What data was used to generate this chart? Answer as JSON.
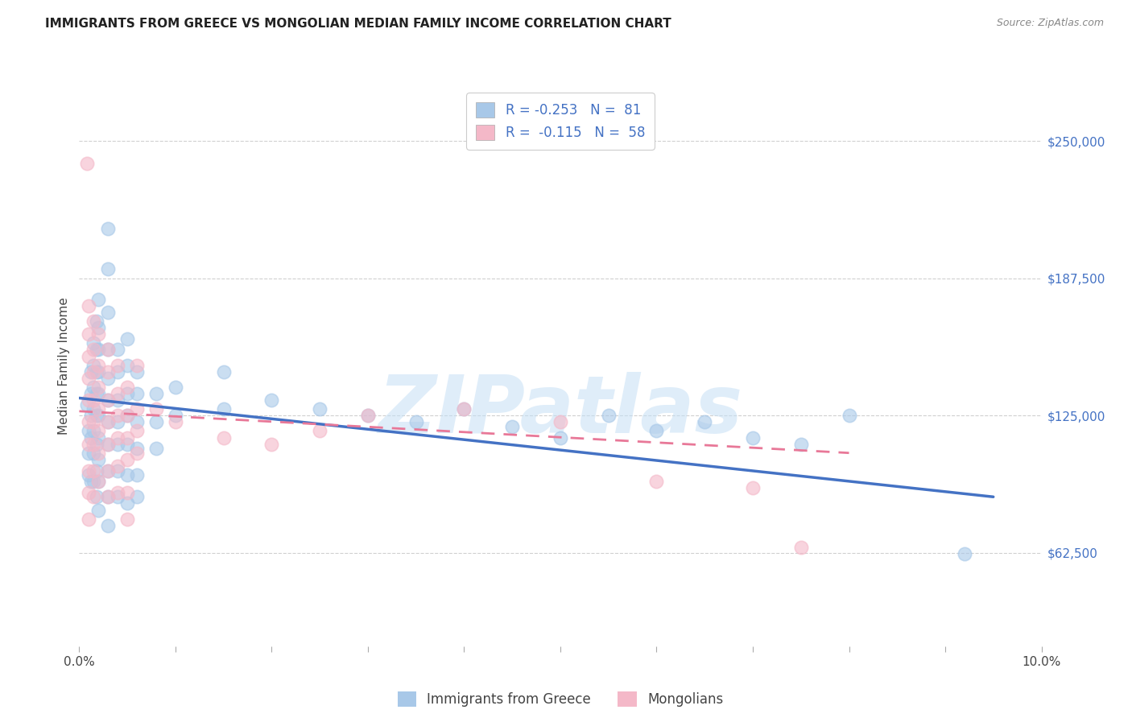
{
  "title": "IMMIGRANTS FROM GREECE VS MONGOLIAN MEDIAN FAMILY INCOME CORRELATION CHART",
  "source": "Source: ZipAtlas.com",
  "ylabel": "Median Family Income",
  "y_ticks": [
    62500,
    125000,
    187500,
    250000
  ],
  "y_tick_labels": [
    "$62,500",
    "$125,000",
    "$187,500",
    "$250,000"
  ],
  "x_range": [
    0.0,
    0.1
  ],
  "y_range": [
    20000,
    275000
  ],
  "legend_label1": "Immigrants from Greece",
  "legend_label2": "Mongolians",
  "blue_color": "#a8c8e8",
  "blue_line_color": "#4472c4",
  "pink_color": "#f4b8c8",
  "pink_line_color": "#e87898",
  "blue_scatter": [
    [
      0.0008,
      130000
    ],
    [
      0.001,
      118000
    ],
    [
      0.001,
      108000
    ],
    [
      0.001,
      98000
    ],
    [
      0.0012,
      145000
    ],
    [
      0.0012,
      135000
    ],
    [
      0.0012,
      125000
    ],
    [
      0.0012,
      115000
    ],
    [
      0.0012,
      95000
    ],
    [
      0.0015,
      158000
    ],
    [
      0.0015,
      148000
    ],
    [
      0.0015,
      138000
    ],
    [
      0.0015,
      128000
    ],
    [
      0.0015,
      118000
    ],
    [
      0.0015,
      108000
    ],
    [
      0.0015,
      95000
    ],
    [
      0.0018,
      168000
    ],
    [
      0.0018,
      155000
    ],
    [
      0.0018,
      145000
    ],
    [
      0.0018,
      135000
    ],
    [
      0.0018,
      125000
    ],
    [
      0.0018,
      112000
    ],
    [
      0.0018,
      100000
    ],
    [
      0.0018,
      88000
    ],
    [
      0.002,
      178000
    ],
    [
      0.002,
      165000
    ],
    [
      0.002,
      155000
    ],
    [
      0.002,
      145000
    ],
    [
      0.002,
      135000
    ],
    [
      0.002,
      125000
    ],
    [
      0.002,
      115000
    ],
    [
      0.002,
      105000
    ],
    [
      0.002,
      95000
    ],
    [
      0.002,
      82000
    ],
    [
      0.003,
      210000
    ],
    [
      0.003,
      192000
    ],
    [
      0.003,
      172000
    ],
    [
      0.003,
      155000
    ],
    [
      0.003,
      142000
    ],
    [
      0.003,
      132000
    ],
    [
      0.003,
      122000
    ],
    [
      0.003,
      112000
    ],
    [
      0.003,
      100000
    ],
    [
      0.003,
      88000
    ],
    [
      0.003,
      75000
    ],
    [
      0.004,
      155000
    ],
    [
      0.004,
      145000
    ],
    [
      0.004,
      132000
    ],
    [
      0.004,
      122000
    ],
    [
      0.004,
      112000
    ],
    [
      0.004,
      100000
    ],
    [
      0.004,
      88000
    ],
    [
      0.005,
      160000
    ],
    [
      0.005,
      148000
    ],
    [
      0.005,
      135000
    ],
    [
      0.005,
      125000
    ],
    [
      0.005,
      112000
    ],
    [
      0.005,
      98000
    ],
    [
      0.005,
      85000
    ],
    [
      0.006,
      145000
    ],
    [
      0.006,
      135000
    ],
    [
      0.006,
      122000
    ],
    [
      0.006,
      110000
    ],
    [
      0.006,
      98000
    ],
    [
      0.006,
      88000
    ],
    [
      0.008,
      135000
    ],
    [
      0.008,
      122000
    ],
    [
      0.008,
      110000
    ],
    [
      0.01,
      138000
    ],
    [
      0.01,
      125000
    ],
    [
      0.015,
      145000
    ],
    [
      0.015,
      128000
    ],
    [
      0.02,
      132000
    ],
    [
      0.025,
      128000
    ],
    [
      0.03,
      125000
    ],
    [
      0.035,
      122000
    ],
    [
      0.04,
      128000
    ],
    [
      0.045,
      120000
    ],
    [
      0.05,
      115000
    ],
    [
      0.055,
      125000
    ],
    [
      0.06,
      118000
    ],
    [
      0.065,
      122000
    ],
    [
      0.07,
      115000
    ],
    [
      0.075,
      112000
    ],
    [
      0.08,
      125000
    ],
    [
      0.092,
      62000
    ]
  ],
  "pink_scatter": [
    [
      0.0008,
      240000
    ],
    [
      0.001,
      175000
    ],
    [
      0.001,
      162000
    ],
    [
      0.001,
      152000
    ],
    [
      0.001,
      142000
    ],
    [
      0.001,
      132000
    ],
    [
      0.001,
      122000
    ],
    [
      0.001,
      112000
    ],
    [
      0.001,
      100000
    ],
    [
      0.001,
      90000
    ],
    [
      0.001,
      78000
    ],
    [
      0.0015,
      168000
    ],
    [
      0.0015,
      155000
    ],
    [
      0.0015,
      145000
    ],
    [
      0.0015,
      132000
    ],
    [
      0.0015,
      122000
    ],
    [
      0.0015,
      112000
    ],
    [
      0.0015,
      100000
    ],
    [
      0.0015,
      88000
    ],
    [
      0.002,
      162000
    ],
    [
      0.002,
      148000
    ],
    [
      0.002,
      138000
    ],
    [
      0.002,
      128000
    ],
    [
      0.002,
      118000
    ],
    [
      0.002,
      108000
    ],
    [
      0.002,
      95000
    ],
    [
      0.003,
      155000
    ],
    [
      0.003,
      145000
    ],
    [
      0.003,
      132000
    ],
    [
      0.003,
      122000
    ],
    [
      0.003,
      112000
    ],
    [
      0.003,
      100000
    ],
    [
      0.003,
      88000
    ],
    [
      0.004,
      148000
    ],
    [
      0.004,
      135000
    ],
    [
      0.004,
      125000
    ],
    [
      0.004,
      115000
    ],
    [
      0.004,
      102000
    ],
    [
      0.004,
      90000
    ],
    [
      0.005,
      138000
    ],
    [
      0.005,
      125000
    ],
    [
      0.005,
      115000
    ],
    [
      0.005,
      105000
    ],
    [
      0.005,
      90000
    ],
    [
      0.005,
      78000
    ],
    [
      0.006,
      148000
    ],
    [
      0.006,
      128000
    ],
    [
      0.006,
      118000
    ],
    [
      0.006,
      108000
    ],
    [
      0.008,
      128000
    ],
    [
      0.01,
      122000
    ],
    [
      0.015,
      115000
    ],
    [
      0.02,
      112000
    ],
    [
      0.025,
      118000
    ],
    [
      0.03,
      125000
    ],
    [
      0.04,
      128000
    ],
    [
      0.05,
      122000
    ],
    [
      0.06,
      95000
    ],
    [
      0.07,
      92000
    ],
    [
      0.075,
      65000
    ]
  ],
  "blue_line_endpoints": [
    [
      0.0,
      133000
    ],
    [
      0.095,
      88000
    ]
  ],
  "pink_line_endpoints": [
    [
      0.0,
      127000
    ],
    [
      0.08,
      108000
    ]
  ],
  "watermark_text": "ZIPatlas",
  "background_color": "#ffffff",
  "grid_color": "#d0d0d0",
  "title_fontsize": 11,
  "source_fontsize": 9,
  "tick_label_color": "#4472c4"
}
